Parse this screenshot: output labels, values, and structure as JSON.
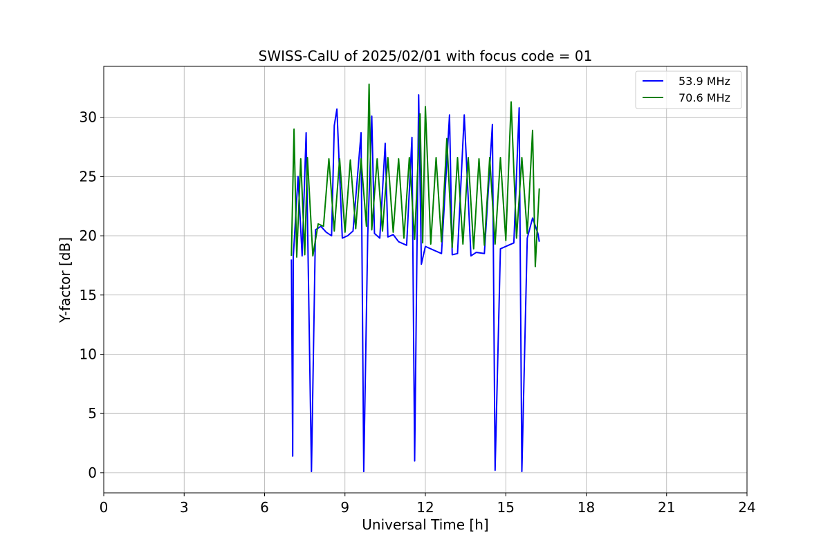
{
  "chart_data": {
    "type": "line",
    "title": "SWISS-CalU of 2025/02/01 with focus code = 01",
    "xlabel": "Universal Time [h]",
    "ylabel": "Y-factor [dB]",
    "xlim": [
      0,
      24
    ],
    "ylim": [
      -1.7,
      34.3
    ],
    "xticks": [
      0,
      3,
      6,
      9,
      12,
      15,
      18,
      21,
      24
    ],
    "yticks": [
      0,
      5,
      10,
      15,
      20,
      25,
      30
    ],
    "grid": true,
    "legend": "top-right",
    "series": [
      {
        "name": "53.9 MHz",
        "color": "#0000ff",
        "x": [
          7.0,
          7.05,
          7.07,
          7.25,
          7.4,
          7.55,
          7.75,
          7.9,
          8.1,
          8.3,
          8.5,
          8.6,
          8.7,
          8.9,
          9.1,
          9.3,
          9.6,
          9.7,
          9.85,
          10.0,
          10.1,
          10.3,
          10.5,
          10.6,
          10.8,
          11.0,
          11.3,
          11.5,
          11.6,
          11.75,
          11.85,
          12.0,
          12.3,
          12.6,
          12.9,
          13.0,
          13.2,
          13.45,
          13.7,
          13.9,
          14.2,
          14.5,
          14.6,
          14.8,
          15.1,
          15.3,
          15.5,
          15.6,
          15.8,
          16.0,
          16.2,
          16.25
        ],
        "y": [
          18.0,
          1.4,
          18.2,
          25.0,
          18.3,
          28.7,
          0.1,
          20.5,
          20.8,
          20.3,
          20.0,
          29.3,
          30.7,
          19.8,
          20.0,
          20.4,
          28.7,
          0.1,
          20.1,
          30.1,
          20.2,
          19.8,
          27.8,
          19.9,
          20.1,
          19.5,
          19.2,
          28.3,
          1.0,
          31.9,
          17.6,
          19.1,
          18.8,
          18.5,
          30.2,
          18.4,
          18.5,
          30.2,
          18.3,
          18.6,
          18.5,
          29.4,
          0.2,
          18.9,
          19.2,
          19.4,
          30.8,
          0.1,
          19.8,
          21.5,
          20.2,
          19.5
        ]
      },
      {
        "name": "70.6 MHz",
        "color": "#008000",
        "x": [
          7.0,
          7.1,
          7.2,
          7.35,
          7.5,
          7.6,
          7.8,
          8.0,
          8.2,
          8.4,
          8.6,
          8.8,
          9.0,
          9.2,
          9.4,
          9.6,
          9.8,
          9.9,
          10.0,
          10.2,
          10.4,
          10.6,
          10.8,
          11.0,
          11.2,
          11.4,
          11.6,
          11.8,
          11.9,
          12.0,
          12.2,
          12.4,
          12.6,
          12.8,
          13.0,
          13.2,
          13.4,
          13.6,
          13.8,
          14.0,
          14.2,
          14.4,
          14.6,
          14.8,
          15.0,
          15.2,
          15.4,
          15.6,
          15.8,
          16.0,
          16.1,
          16.25
        ],
        "y": [
          18.3,
          29.0,
          18.2,
          26.5,
          18.4,
          26.6,
          18.3,
          21.0,
          20.8,
          26.5,
          20.4,
          26.5,
          20.3,
          26.4,
          20.6,
          26.5,
          20.8,
          32.8,
          20.5,
          26.5,
          20.4,
          26.6,
          20.3,
          26.5,
          19.8,
          26.6,
          19.7,
          30.3,
          19.4,
          30.9,
          19.3,
          26.6,
          19.5,
          28.2,
          19.0,
          26.6,
          19.3,
          26.6,
          18.9,
          26.5,
          19.2,
          26.6,
          19.3,
          26.6,
          19.6,
          31.3,
          19.8,
          26.6,
          20.2,
          28.9,
          17.4,
          24.0
        ]
      }
    ]
  }
}
